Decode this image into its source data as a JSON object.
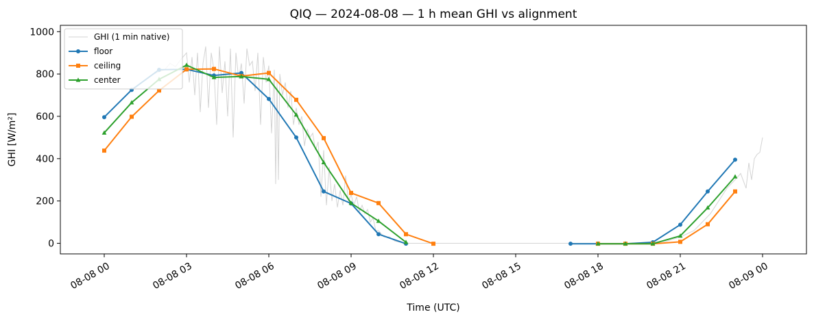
{
  "chart_data": {
    "type": "line",
    "title": "QIQ — 2024-08-08 — 1 h mean GHI vs alignment",
    "xlabel": "Time (UTC)",
    "ylabel": "GHI [W/m²]",
    "xlim_hours": [
      -1.6,
      25.6
    ],
    "ylim": [
      -50,
      1030
    ],
    "x_ticks": [
      {
        "hour": 0,
        "label": "08-08 00"
      },
      {
        "hour": 3,
        "label": "08-08 03"
      },
      {
        "hour": 6,
        "label": "08-08 06"
      },
      {
        "hour": 9,
        "label": "08-08 09"
      },
      {
        "hour": 12,
        "label": "08-08 12"
      },
      {
        "hour": 15,
        "label": "08-08 15"
      },
      {
        "hour": 18,
        "label": "08-08 18"
      },
      {
        "hour": 21,
        "label": "08-08 21"
      },
      {
        "hour": 24,
        "label": "08-09 00"
      }
    ],
    "y_ticks": [
      0,
      200,
      400,
      600,
      800,
      1000
    ],
    "grid": false,
    "legend_position": "top-left",
    "raw_series": {
      "name": "GHI (1 min native)",
      "color": "#d3d3d3",
      "hours": [
        1.8,
        2.0,
        2.2,
        2.4,
        2.6,
        2.8,
        3.0,
        3.1,
        3.2,
        3.3,
        3.4,
        3.5,
        3.6,
        3.7,
        3.8,
        3.9,
        4.0,
        4.1,
        4.2,
        4.3,
        4.4,
        4.5,
        4.6,
        4.7,
        4.8,
        4.9,
        5.0,
        5.1,
        5.2,
        5.3,
        5.4,
        5.5,
        5.6,
        5.7,
        5.8,
        5.9,
        6.0,
        6.1,
        6.2,
        6.25,
        6.3,
        6.35,
        6.4,
        6.5,
        6.6,
        6.7,
        6.8,
        6.9,
        7.0,
        7.1,
        7.2,
        7.3,
        7.4,
        7.5,
        7.6,
        7.7,
        7.8,
        7.9,
        8.0,
        8.1,
        8.2,
        8.3,
        8.4,
        8.5,
        8.6,
        8.7,
        8.8,
        8.9,
        9.0,
        9.1,
        9.2,
        9.3,
        9.4,
        9.5,
        9.6,
        9.7,
        9.8,
        9.9,
        10.0,
        10.2,
        10.4,
        10.6,
        10.8,
        11.0,
        11.2,
        11.5,
        12.0,
        12.5,
        13.0,
        14.0,
        15.0,
        16.0,
        17.0,
        18.0,
        19.0,
        20.0,
        20.5,
        21.0,
        21.5,
        21.8,
        22.1,
        22.4,
        22.7,
        23.0,
        23.2,
        23.4,
        23.5,
        23.6,
        23.7,
        23.8,
        23.9,
        24.0
      ],
      "values": [
        800,
        810,
        820,
        850,
        835,
        870,
        900,
        760,
        880,
        700,
        900,
        620,
        850,
        930,
        640,
        900,
        820,
        560,
        930,
        710,
        860,
        600,
        920,
        500,
        900,
        780,
        850,
        660,
        920,
        840,
        860,
        720,
        900,
        560,
        880,
        760,
        840,
        520,
        820,
        280,
        760,
        300,
        800,
        700,
        760,
        640,
        720,
        560,
        640,
        560,
        600,
        460,
        540,
        500,
        520,
        440,
        480,
        220,
        440,
        180,
        360,
        200,
        280,
        170,
        250,
        180,
        320,
        200,
        230,
        180,
        220,
        150,
        180,
        140,
        160,
        100,
        120,
        60,
        60,
        30,
        30,
        10,
        5,
        0,
        0,
        0,
        0,
        0,
        0,
        0,
        0,
        0,
        0,
        0,
        0,
        5,
        10,
        30,
        60,
        100,
        140,
        200,
        260,
        300,
        330,
        260,
        380,
        300,
        400,
        420,
        430,
        500
      ]
    },
    "series": [
      {
        "name": "floor",
        "color": "#1f77b4",
        "marker": "circle",
        "hours": [
          0,
          1,
          2,
          3,
          4,
          5,
          6,
          7,
          8,
          9,
          10,
          11,
          null,
          17,
          18,
          19,
          20,
          21,
          22,
          23
        ],
        "values": [
          596,
          725,
          820,
          822,
          793,
          805,
          682,
          500,
          245,
          188,
          43,
          -2,
          null,
          -2,
          -2,
          -2,
          5,
          88,
          245,
          395
        ]
      },
      {
        "name": "ceiling",
        "color": "#ff7f0e",
        "marker": "square",
        "hours": [
          0,
          1,
          2,
          3,
          4,
          5,
          6,
          7,
          8,
          9,
          10,
          11,
          12,
          null,
          18,
          19,
          20,
          21,
          22,
          23
        ],
        "values": [
          438,
          598,
          722,
          822,
          824,
          790,
          805,
          678,
          497,
          238,
          190,
          43,
          -2,
          null,
          -2,
          -2,
          -2,
          7,
          90,
          245
        ]
      },
      {
        "name": "center",
        "color": "#2ca02c",
        "marker": "triangle",
        "hours": [
          0,
          1,
          2,
          3,
          4,
          5,
          6,
          7,
          8,
          9,
          10,
          11,
          null,
          18,
          19,
          20,
          21,
          22,
          23
        ],
        "values": [
          522,
          665,
          775,
          842,
          784,
          788,
          775,
          607,
          382,
          190,
          105,
          5,
          null,
          -2,
          -2,
          -2,
          35,
          168,
          315
        ]
      }
    ]
  }
}
